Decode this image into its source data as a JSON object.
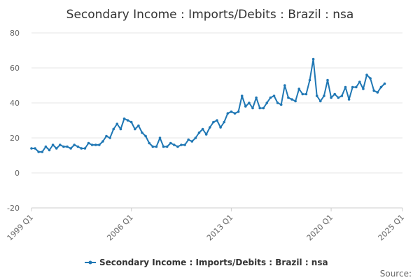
{
  "chart_data": {
    "type": "line",
    "title": "Secondary Income : Imports/Debits : Brazil : nsa",
    "xlabel": "",
    "ylabel": "",
    "ylim": [
      -20,
      80
    ],
    "yticks": [
      80,
      60,
      40,
      20,
      0,
      -20
    ],
    "xticks": [
      "1999 Q1",
      "2006 Q1",
      "2013 Q1",
      "2020 Q1",
      "2025 Q1"
    ],
    "grid": "horizontal",
    "legend_position": "bottom",
    "start_quarter": "1999 Q1",
    "series": [
      {
        "name": "Secondary Income : Imports/Debits : Brazil : nsa",
        "color": "#1f77b4",
        "values": [
          14,
          14,
          12,
          12,
          15,
          13,
          16,
          14,
          16,
          15,
          15,
          14,
          16,
          15,
          14,
          14,
          17,
          16,
          16,
          16,
          18,
          21,
          20,
          25,
          28,
          25,
          31,
          30,
          29,
          25,
          27,
          23,
          21,
          17,
          15,
          15,
          20,
          15,
          15,
          17,
          16,
          15,
          16,
          16,
          19,
          18,
          20,
          23,
          25,
          22,
          26,
          29,
          30,
          26,
          29,
          34,
          35,
          34,
          35,
          44,
          38,
          40,
          37,
          43,
          37,
          37,
          40,
          43,
          44,
          40,
          39,
          50,
          43,
          42,
          41,
          48,
          45,
          45,
          53,
          65,
          44,
          41,
          44,
          53,
          43,
          45,
          43,
          44,
          49,
          42,
          49,
          49,
          52,
          48,
          56,
          54,
          47,
          46,
          49,
          51
        ]
      }
    ]
  },
  "source_label": "Source:"
}
